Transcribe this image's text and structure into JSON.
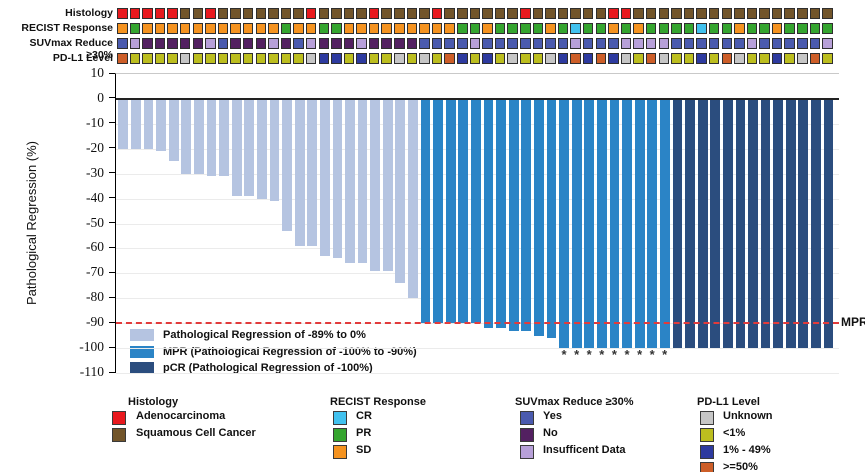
{
  "annotation_tracks": {
    "rows": [
      {
        "key": "histology",
        "label": "Histology",
        "palette": {
          "A": "#e8191e",
          "S": "#72552a"
        },
        "cells": [
          "A",
          "A",
          "A",
          "A",
          "A",
          "S",
          "S",
          "A",
          "S",
          "S",
          "S",
          "S",
          "S",
          "S",
          "S",
          "A",
          "S",
          "S",
          "S",
          "S",
          "A",
          "S",
          "S",
          "S",
          "S",
          "A",
          "S",
          "S",
          "S",
          "S",
          "S",
          "S",
          "A",
          "S",
          "S",
          "S",
          "S",
          "S",
          "S",
          "A",
          "A",
          "S",
          "S",
          "S",
          "S",
          "S",
          "S",
          "S",
          "S",
          "S",
          "S",
          "S",
          "S",
          "S",
          "S",
          "S",
          "S"
        ]
      },
      {
        "key": "recist",
        "label": "RECIST Response",
        "palette": {
          "O": "#f59320",
          "G": "#35a52f",
          "C": "#41c1ee"
        },
        "cells": [
          "O",
          "G",
          "O",
          "O",
          "O",
          "O",
          "O",
          "O",
          "O",
          "O",
          "O",
          "O",
          "O",
          "G",
          "O",
          "O",
          "G",
          "G",
          "O",
          "O",
          "O",
          "O",
          "O",
          "O",
          "O",
          "O",
          "O",
          "G",
          "G",
          "O",
          "G",
          "G",
          "G",
          "G",
          "O",
          "G",
          "C",
          "G",
          "G",
          "O",
          "G",
          "O",
          "G",
          "G",
          "G",
          "G",
          "C",
          "G",
          "G",
          "O",
          "G",
          "G",
          "O",
          "G",
          "G",
          "G",
          "G"
        ]
      },
      {
        "key": "suvmax",
        "label": "SUVmax Reduce ≥30%",
        "palette": {
          "Y": "#4a5aae",
          "N": "#532061",
          "I": "#b7a0d8"
        },
        "cells": [
          "Y",
          "I",
          "N",
          "N",
          "N",
          "N",
          "N",
          "I",
          "Y",
          "N",
          "N",
          "N",
          "I",
          "N",
          "Y",
          "I",
          "N",
          "N",
          "N",
          "I",
          "N",
          "N",
          "N",
          "N",
          "Y",
          "Y",
          "Y",
          "Y",
          "I",
          "Y",
          "Y",
          "Y",
          "Y",
          "Y",
          "Y",
          "Y",
          "I",
          "Y",
          "Y",
          "Y",
          "I",
          "I",
          "I",
          "I",
          "Y",
          "Y",
          "Y",
          "Y",
          "Y",
          "Y",
          "I",
          "Y",
          "Y",
          "Y",
          "Y",
          "Y",
          "I"
        ]
      },
      {
        "key": "pdl1",
        "label": "PD-L1 Level",
        "palette": {
          "U": "#c6c6c6",
          "L": "#bcbe1f",
          "M": "#2d3a9f",
          "H": "#cd5e28"
        },
        "cells": [
          "H",
          "L",
          "L",
          "L",
          "L",
          "U",
          "L",
          "L",
          "L",
          "L",
          "L",
          "L",
          "L",
          "L",
          "L",
          "U",
          "M",
          "M",
          "L",
          "M",
          "L",
          "L",
          "U",
          "L",
          "U",
          "L",
          "H",
          "M",
          "L",
          "M",
          "L",
          "U",
          "L",
          "L",
          "U",
          "M",
          "H",
          "M",
          "H",
          "M",
          "U",
          "L",
          "H",
          "U",
          "L",
          "L",
          "M",
          "L",
          "H",
          "U",
          "L",
          "L",
          "M",
          "L",
          "U",
          "H",
          "L"
        ]
      }
    ]
  },
  "chart_data": {
    "type": "bar",
    "title": "",
    "xlabel": "",
    "ylabel": "Pathological Regression (%)",
    "ylim": [
      -110,
      10
    ],
    "yticks": [
      10,
      0,
      -10,
      -20,
      -30,
      -40,
      -50,
      -60,
      -70,
      -80,
      -90,
      -100,
      -110
    ],
    "grid": true,
    "bar_count": 57,
    "values": [
      -20,
      -20,
      -20,
      -21,
      -25,
      -30,
      -30,
      -31,
      -31,
      -39,
      -39,
      -40,
      -41,
      -53,
      -59,
      -59,
      -63,
      -64,
      -66,
      -66,
      -69,
      -69,
      -74,
      -80,
      -90,
      -90,
      -90,
      -90,
      -90,
      -92,
      -92,
      -93,
      -93,
      -95,
      -96,
      -100,
      -100,
      -100,
      -100,
      -100,
      -100,
      -100,
      -100,
      -100,
      -100,
      -100,
      -100,
      -100,
      -100,
      -100,
      -100,
      -100,
      -100,
      -100,
      -100,
      -100,
      -100
    ],
    "groups": [
      {
        "key": "light",
        "count": 24,
        "color": "#b5c4e1"
      },
      {
        "key": "mpr",
        "count": 20,
        "color": "#2b84c6"
      },
      {
        "key": "pcr",
        "count": 13,
        "color": "#2b4d7e"
      }
    ],
    "legend": [
      {
        "label": "Pathological Regression of -89% to 0%",
        "color": "#b5c4e1"
      },
      {
        "label": "MPR (Pathological Regression of -100% to -90%)",
        "color": "#2b84c6"
      },
      {
        "label": "pCR (Pathological Regression of -100%)",
        "color": "#2b4d7e"
      }
    ],
    "mpr_line": {
      "value": -90,
      "label": "MPR",
      "color": "#e23b3b"
    },
    "marker": "*",
    "asterisk_bars": [
      36,
      37,
      38,
      39,
      40,
      41,
      42,
      43,
      44
    ]
  },
  "bottom_legends": [
    {
      "title": "Histology",
      "items": [
        {
          "label": "Adenocarcinoma",
          "color": "#e8191e"
        },
        {
          "label": "Squamous Cell Cancer",
          "color": "#72552a"
        }
      ]
    },
    {
      "title": "RECIST Response",
      "items": [
        {
          "label": "CR",
          "color": "#41c1ee"
        },
        {
          "label": "PR",
          "color": "#35a52f"
        },
        {
          "label": "SD",
          "color": "#f59320"
        }
      ]
    },
    {
      "title": "SUVmax Reduce ≥30%",
      "items": [
        {
          "label": "Yes",
          "color": "#4a5aae"
        },
        {
          "label": "No",
          "color": "#532061"
        },
        {
          "label": "Insufficent Data",
          "color": "#b7a0d8"
        }
      ]
    },
    {
      "title": "PD-L1 Level",
      "items": [
        {
          "label": "Unknown",
          "color": "#c6c6c6"
        },
        {
          "label": "<1%",
          "color": "#bcbe1f"
        },
        {
          "label": "1% - 49%",
          "color": "#2d3a9f"
        },
        {
          "label": ">=50%",
          "color": "#cd5e28"
        }
      ]
    }
  ]
}
